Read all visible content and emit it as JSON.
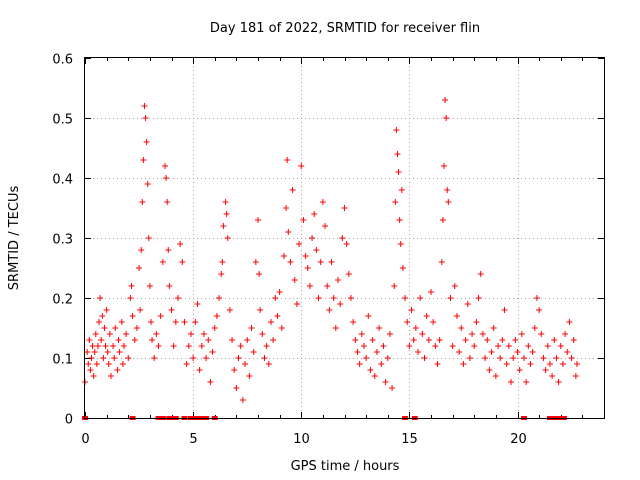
{
  "chart_data": {
    "type": "scatter",
    "title": "Day 181 of 2022, SRMTID for receiver flin",
    "xlabel": "GPS time / hours",
    "ylabel": "SRMTID / TECUs",
    "xlim": [
      0,
      24
    ],
    "ylim": [
      0,
      0.6
    ],
    "grid": true,
    "marker": "plus",
    "color": "#ff0000",
    "x_ticks": [
      0,
      5,
      10,
      15,
      20
    ],
    "x_tick_labels": [
      "0",
      "5",
      "10",
      "15",
      "20"
    ],
    "y_ticks": [
      0,
      0.1,
      0.2,
      0.3,
      0.4,
      0.5,
      0.6
    ],
    "y_tick_labels": [
      "0",
      "0.1",
      "0.2",
      "0.3",
      "0.4",
      "0.5",
      "0.6"
    ],
    "series": [
      {
        "name": "SRMTID",
        "points": [
          [
            0.0,
            0.06
          ],
          [
            0.1,
            0.11
          ],
          [
            0.15,
            0.09
          ],
          [
            0.2,
            0.13
          ],
          [
            0.25,
            0.08
          ],
          [
            0.3,
            0.1
          ],
          [
            0.35,
            0.12
          ],
          [
            0.4,
            0.07
          ],
          [
            0.45,
            0.11
          ],
          [
            0.5,
            0.14
          ],
          [
            0.55,
            0.09
          ],
          [
            0.6,
            0.12
          ],
          [
            0.65,
            0.16
          ],
          [
            0.7,
            0.2
          ],
          [
            0.75,
            0.13
          ],
          [
            0.8,
            0.17
          ],
          [
            0.85,
            0.1
          ],
          [
            0.9,
            0.15
          ],
          [
            0.95,
            0.12
          ],
          [
            1.0,
            0.18
          ],
          [
            1.05,
            0.11
          ],
          [
            1.1,
            0.09
          ],
          [
            1.15,
            0.14
          ],
          [
            1.2,
            0.07
          ],
          [
            1.3,
            0.12
          ],
          [
            1.35,
            0.1
          ],
          [
            1.4,
            0.15
          ],
          [
            1.5,
            0.08
          ],
          [
            1.55,
            0.13
          ],
          [
            1.6,
            0.11
          ],
          [
            1.7,
            0.16
          ],
          [
            1.75,
            0.09
          ],
          [
            1.8,
            0.12
          ],
          [
            1.9,
            0.14
          ],
          [
            2.0,
            0.1
          ],
          [
            2.1,
            0.2
          ],
          [
            2.15,
            0.22
          ],
          [
            2.2,
            0.17
          ],
          [
            2.3,
            0.13
          ],
          [
            2.4,
            0.15
          ],
          [
            2.5,
            0.25
          ],
          [
            2.55,
            0.18
          ],
          [
            2.6,
            0.28
          ],
          [
            2.65,
            0.36
          ],
          [
            2.7,
            0.43
          ],
          [
            2.75,
            0.52
          ],
          [
            2.8,
            0.5
          ],
          [
            2.85,
            0.46
          ],
          [
            2.9,
            0.39
          ],
          [
            2.95,
            0.3
          ],
          [
            3.0,
            0.22
          ],
          [
            3.05,
            0.16
          ],
          [
            3.1,
            0.13
          ],
          [
            3.2,
            0.1
          ],
          [
            3.3,
            0.14
          ],
          [
            3.4,
            0.12
          ],
          [
            3.5,
            0.17
          ],
          [
            3.6,
            0.26
          ],
          [
            3.7,
            0.42
          ],
          [
            3.75,
            0.4
          ],
          [
            3.8,
            0.36
          ],
          [
            3.85,
            0.28
          ],
          [
            3.9,
            0.22
          ],
          [
            4.0,
            0.18
          ],
          [
            4.1,
            0.12
          ],
          [
            4.2,
            0.16
          ],
          [
            4.3,
            0.2
          ],
          [
            4.4,
            0.29
          ],
          [
            4.5,
            0.26
          ],
          [
            4.6,
            0.16
          ],
          [
            4.7,
            0.09
          ],
          [
            4.8,
            0.12
          ],
          [
            4.9,
            0.14
          ],
          [
            5.0,
            0.1
          ],
          [
            5.1,
            0.16
          ],
          [
            5.2,
            0.19
          ],
          [
            5.3,
            0.08
          ],
          [
            5.4,
            0.12
          ],
          [
            5.5,
            0.14
          ],
          [
            5.6,
            0.1
          ],
          [
            5.7,
            0.13
          ],
          [
            5.8,
            0.06
          ],
          [
            5.9,
            0.11
          ],
          [
            6.0,
            0.15
          ],
          [
            6.1,
            0.17
          ],
          [
            6.2,
            0.2
          ],
          [
            6.3,
            0.24
          ],
          [
            6.35,
            0.26
          ],
          [
            6.4,
            0.32
          ],
          [
            6.5,
            0.36
          ],
          [
            6.55,
            0.34
          ],
          [
            6.6,
            0.3
          ],
          [
            6.7,
            0.18
          ],
          [
            6.8,
            0.13
          ],
          [
            6.9,
            0.08
          ],
          [
            7.0,
            0.05
          ],
          [
            7.1,
            0.1
          ],
          [
            7.2,
            0.12
          ],
          [
            7.3,
            0.03
          ],
          [
            7.4,
            0.09
          ],
          [
            7.5,
            0.13
          ],
          [
            7.6,
            0.07
          ],
          [
            7.7,
            0.15
          ],
          [
            7.8,
            0.11
          ],
          [
            7.9,
            0.26
          ],
          [
            8.0,
            0.33
          ],
          [
            8.05,
            0.24
          ],
          [
            8.1,
            0.18
          ],
          [
            8.2,
            0.14
          ],
          [
            8.3,
            0.1
          ],
          [
            8.4,
            0.12
          ],
          [
            8.5,
            0.09
          ],
          [
            8.6,
            0.16
          ],
          [
            8.7,
            0.13
          ],
          [
            8.8,
            0.2
          ],
          [
            8.9,
            0.17
          ],
          [
            9.0,
            0.21
          ],
          [
            9.1,
            0.15
          ],
          [
            9.2,
            0.27
          ],
          [
            9.3,
            0.35
          ],
          [
            9.35,
            0.43
          ],
          [
            9.4,
            0.31
          ],
          [
            9.5,
            0.26
          ],
          [
            9.6,
            0.38
          ],
          [
            9.7,
            0.23
          ],
          [
            9.8,
            0.19
          ],
          [
            9.9,
            0.29
          ],
          [
            10.0,
            0.42
          ],
          [
            10.1,
            0.33
          ],
          [
            10.2,
            0.27
          ],
          [
            10.3,
            0.25
          ],
          [
            10.4,
            0.22
          ],
          [
            10.5,
            0.3
          ],
          [
            10.6,
            0.34
          ],
          [
            10.7,
            0.28
          ],
          [
            10.8,
            0.2
          ],
          [
            10.9,
            0.26
          ],
          [
            11.0,
            0.36
          ],
          [
            11.1,
            0.32
          ],
          [
            11.2,
            0.22
          ],
          [
            11.3,
            0.18
          ],
          [
            11.4,
            0.26
          ],
          [
            11.5,
            0.2
          ],
          [
            11.6,
            0.15
          ],
          [
            11.7,
            0.23
          ],
          [
            11.8,
            0.19
          ],
          [
            11.9,
            0.3
          ],
          [
            12.0,
            0.35
          ],
          [
            12.1,
            0.29
          ],
          [
            12.2,
            0.24
          ],
          [
            12.3,
            0.2
          ],
          [
            12.4,
            0.16
          ],
          [
            12.5,
            0.13
          ],
          [
            12.6,
            0.11
          ],
          [
            12.7,
            0.09
          ],
          [
            12.8,
            0.14
          ],
          [
            12.9,
            0.12
          ],
          [
            13.0,
            0.1
          ],
          [
            13.1,
            0.17
          ],
          [
            13.2,
            0.08
          ],
          [
            13.3,
            0.13
          ],
          [
            13.4,
            0.07
          ],
          [
            13.5,
            0.11
          ],
          [
            13.6,
            0.15
          ],
          [
            13.7,
            0.09
          ],
          [
            13.8,
            0.12
          ],
          [
            13.9,
            0.06
          ],
          [
            14.0,
            0.1
          ],
          [
            14.1,
            0.14
          ],
          [
            14.2,
            0.05
          ],
          [
            14.3,
            0.22
          ],
          [
            14.35,
            0.36
          ],
          [
            14.4,
            0.48
          ],
          [
            14.45,
            0.44
          ],
          [
            14.5,
            0.41
          ],
          [
            14.55,
            0.33
          ],
          [
            14.6,
            0.29
          ],
          [
            14.65,
            0.38
          ],
          [
            14.7,
            0.25
          ],
          [
            14.8,
            0.2
          ],
          [
            14.9,
            0.16
          ],
          [
            15.0,
            0.12
          ],
          [
            15.1,
            0.18
          ],
          [
            15.2,
            0.13
          ],
          [
            15.3,
            0.15
          ],
          [
            15.4,
            0.11
          ],
          [
            15.5,
            0.2
          ],
          [
            15.6,
            0.14
          ],
          [
            15.7,
            0.1
          ],
          [
            15.8,
            0.17
          ],
          [
            15.9,
            0.13
          ],
          [
            16.0,
            0.21
          ],
          [
            16.1,
            0.16
          ],
          [
            16.2,
            0.12
          ],
          [
            16.3,
            0.09
          ],
          [
            16.4,
            0.13
          ],
          [
            16.5,
            0.26
          ],
          [
            16.55,
            0.33
          ],
          [
            16.6,
            0.42
          ],
          [
            16.65,
            0.53
          ],
          [
            16.7,
            0.5
          ],
          [
            16.75,
            0.38
          ],
          [
            16.8,
            0.36
          ],
          [
            16.9,
            0.2
          ],
          [
            17.0,
            0.12
          ],
          [
            17.1,
            0.22
          ],
          [
            17.2,
            0.17
          ],
          [
            17.3,
            0.11
          ],
          [
            17.4,
            0.15
          ],
          [
            17.5,
            0.09
          ],
          [
            17.6,
            0.13
          ],
          [
            17.7,
            0.19
          ],
          [
            17.8,
            0.1
          ],
          [
            17.9,
            0.14
          ],
          [
            18.0,
            0.12
          ],
          [
            18.1,
            0.16
          ],
          [
            18.2,
            0.2
          ],
          [
            18.3,
            0.24
          ],
          [
            18.4,
            0.14
          ],
          [
            18.5,
            0.1
          ],
          [
            18.6,
            0.13
          ],
          [
            18.7,
            0.08
          ],
          [
            18.8,
            0.11
          ],
          [
            18.9,
            0.15
          ],
          [
            19.0,
            0.07
          ],
          [
            19.1,
            0.12
          ],
          [
            19.2,
            0.1
          ],
          [
            19.3,
            0.13
          ],
          [
            19.4,
            0.18
          ],
          [
            19.5,
            0.09
          ],
          [
            19.6,
            0.12
          ],
          [
            19.7,
            0.06
          ],
          [
            19.8,
            0.1
          ],
          [
            19.9,
            0.13
          ],
          [
            20.0,
            0.11
          ],
          [
            20.1,
            0.08
          ],
          [
            20.2,
            0.14
          ],
          [
            20.3,
            0.1
          ],
          [
            20.4,
            0.06
          ],
          [
            20.5,
            0.12
          ],
          [
            20.6,
            0.09
          ],
          [
            20.7,
            0.11
          ],
          [
            20.8,
            0.15
          ],
          [
            20.9,
            0.2
          ],
          [
            21.0,
            0.18
          ],
          [
            21.1,
            0.14
          ],
          [
            21.2,
            0.1
          ],
          [
            21.3,
            0.08
          ],
          [
            21.4,
            0.12
          ],
          [
            21.5,
            0.09
          ],
          [
            21.6,
            0.07
          ],
          [
            21.7,
            0.13
          ],
          [
            21.8,
            0.1
          ],
          [
            21.9,
            0.06
          ],
          [
            22.0,
            0.12
          ],
          [
            22.1,
            0.09
          ],
          [
            22.2,
            0.14
          ],
          [
            22.3,
            0.11
          ],
          [
            22.4,
            0.16
          ],
          [
            22.5,
            0.1
          ],
          [
            22.6,
            0.13
          ],
          [
            22.7,
            0.07
          ],
          [
            22.75,
            0.09
          ]
        ]
      }
    ],
    "zero_markers_x": [
      0.0,
      2.2,
      3.4,
      3.5,
      3.6,
      3.9,
      4.1,
      4.2,
      4.6,
      4.9,
      5.0,
      5.15,
      5.3,
      5.45,
      5.6,
      6.0,
      14.8,
      15.25,
      20.3,
      21.5,
      21.75,
      22.0,
      22.15
    ]
  }
}
